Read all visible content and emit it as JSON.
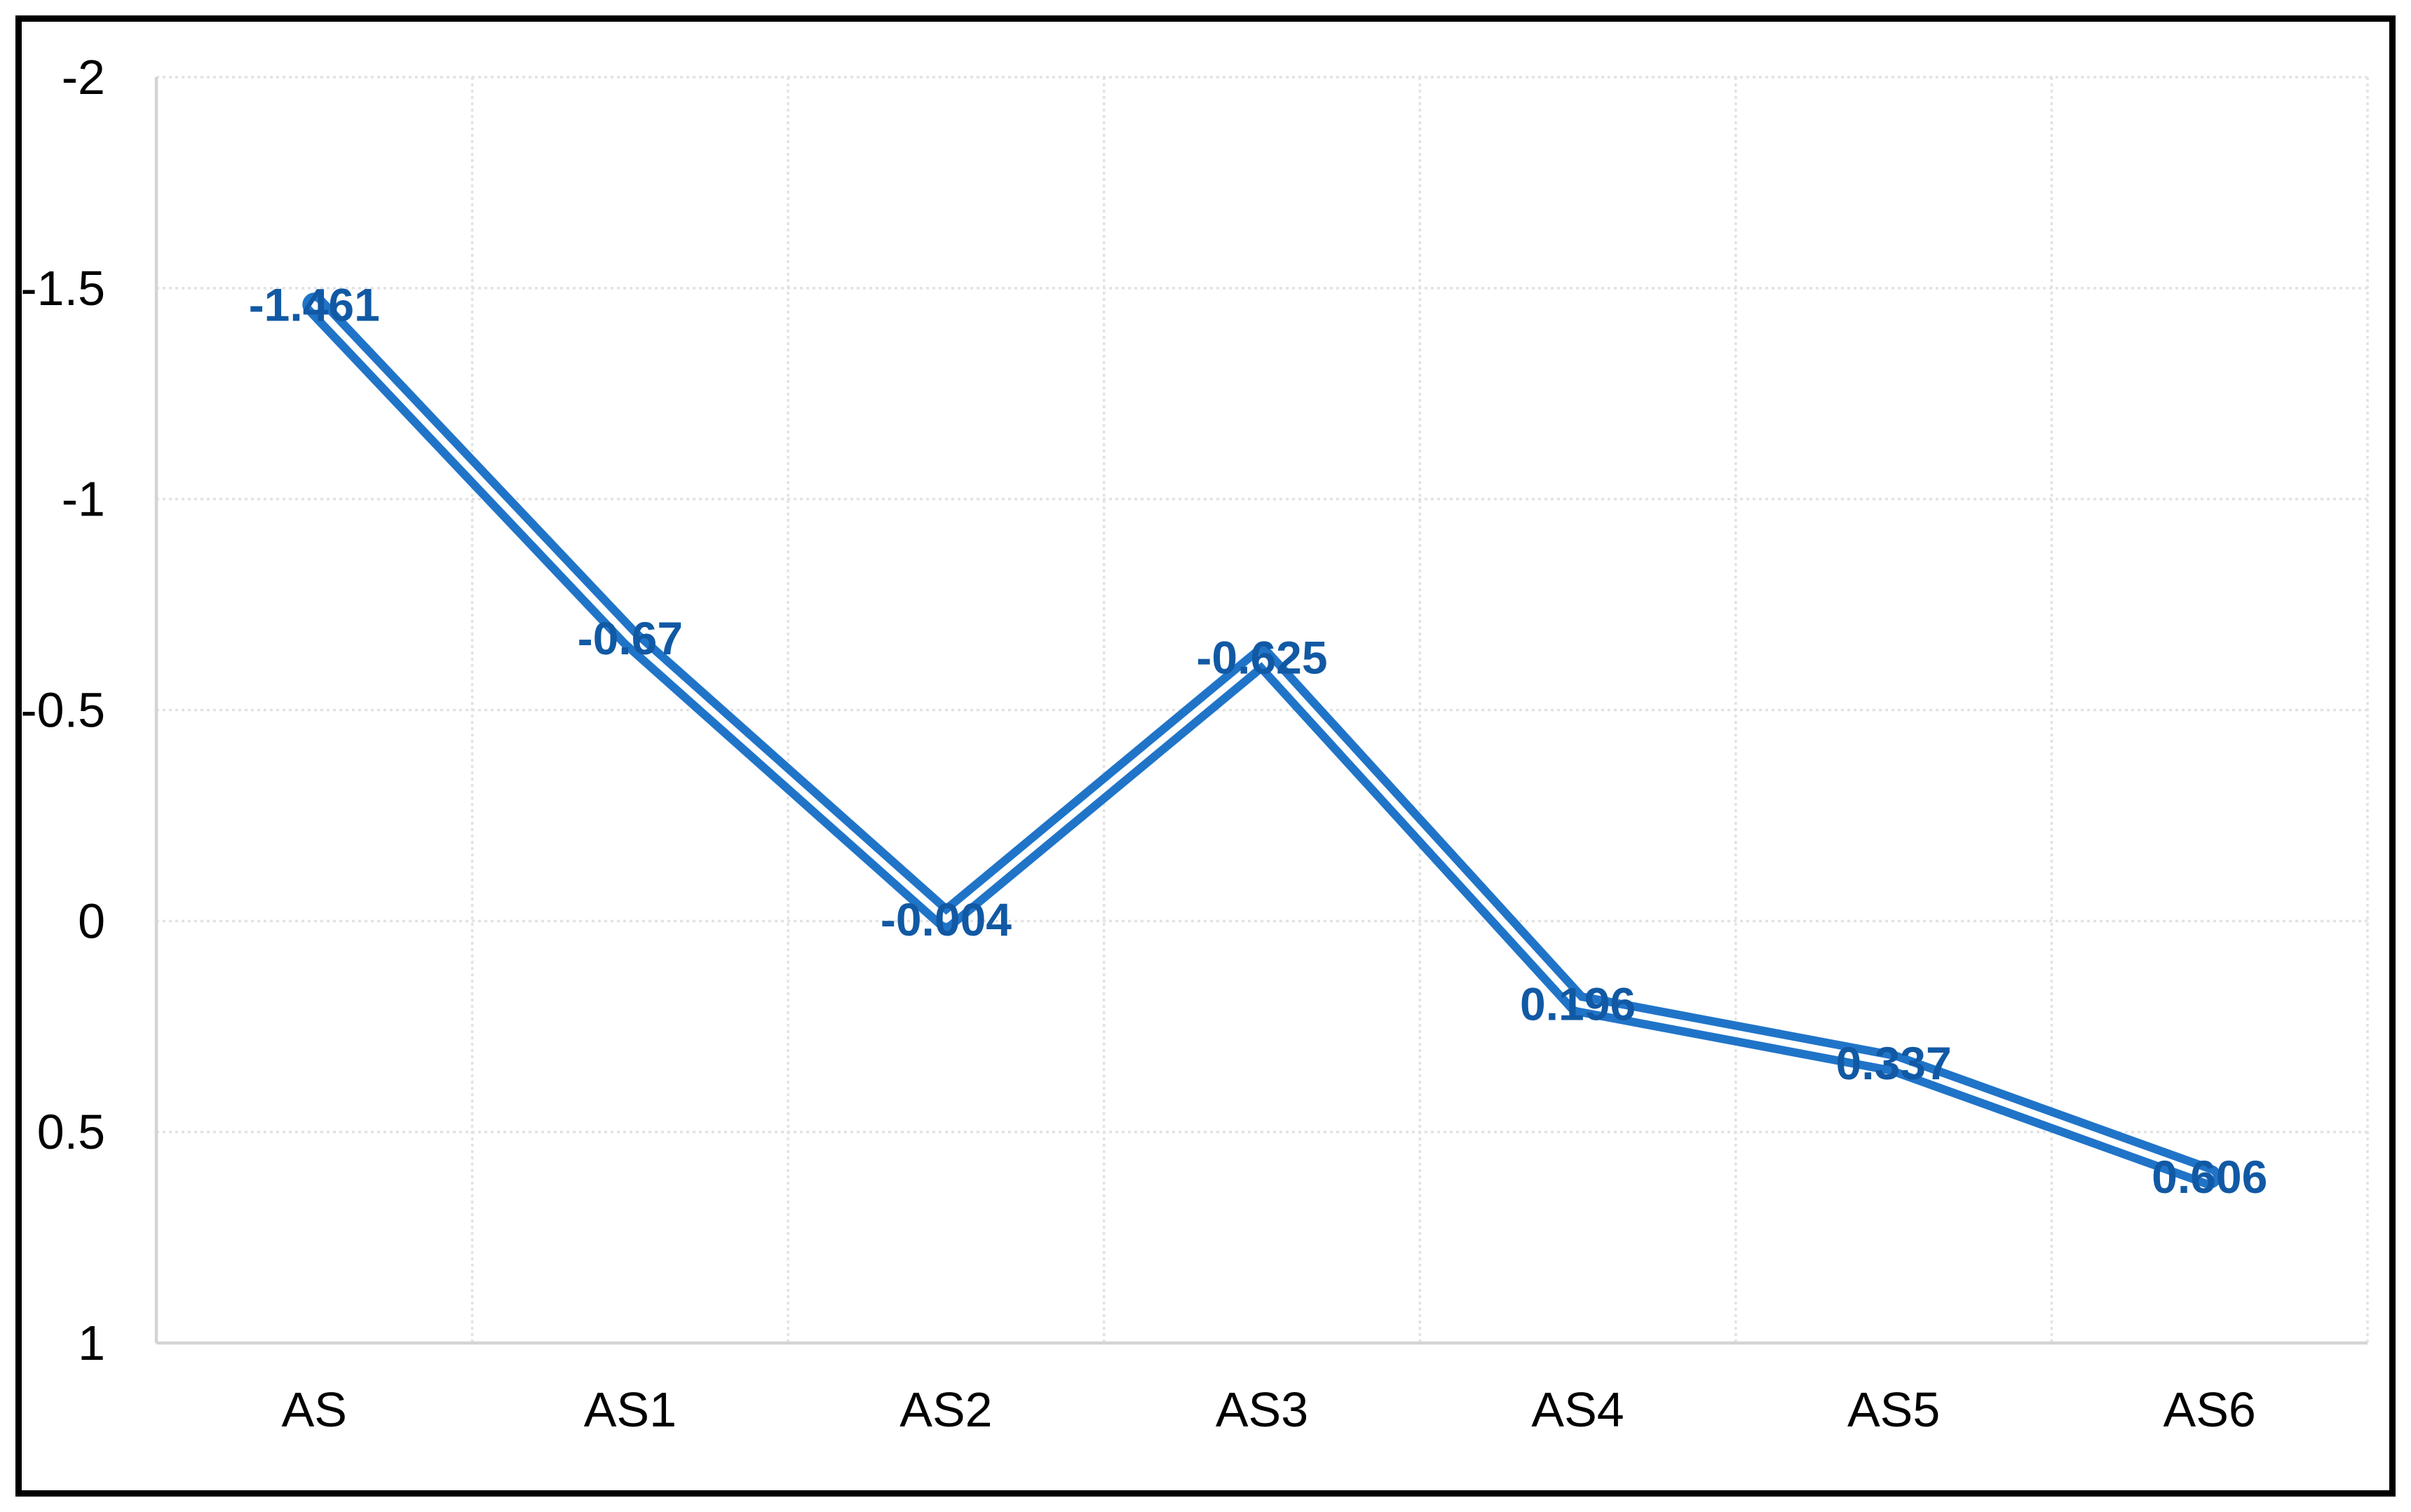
{
  "figure": {
    "background": "#FFFFFF",
    "border_color": "#000000"
  },
  "chart_data": {
    "type": "line",
    "title": "",
    "xlabel": "",
    "ylabel": "",
    "categories": [
      "AS",
      "AS1",
      "AS2",
      "AS3",
      "AS4",
      "AS5",
      "AS6"
    ],
    "values": [
      -1.461,
      -0.67,
      -0.004,
      -0.625,
      0.196,
      0.337,
      0.606
    ],
    "data_labels": [
      "-1.461",
      "-0.67",
      "-0.004",
      "-0.625",
      "0.196",
      "0.337",
      "0.606"
    ],
    "y_axis": {
      "min": -2,
      "max": 1,
      "reversed": true,
      "ticks": [
        -2,
        -1.5,
        -1,
        -0.5,
        0,
        0.5,
        1
      ],
      "tick_labels": [
        "-2",
        "-1.5",
        "-1",
        "-0.5",
        "0",
        "0.5",
        "1"
      ]
    },
    "grid": true,
    "gridline_style": "dotted",
    "legend": false,
    "data_label_position": "center",
    "line_style": "double",
    "colors": {
      "line": "#2074C8",
      "line_core": "#FFFFFF",
      "data_label": "#1159A4",
      "gridline": "#E2E2E2",
      "axis_line": "#D4D4D4",
      "tick_text": "#000000"
    }
  }
}
